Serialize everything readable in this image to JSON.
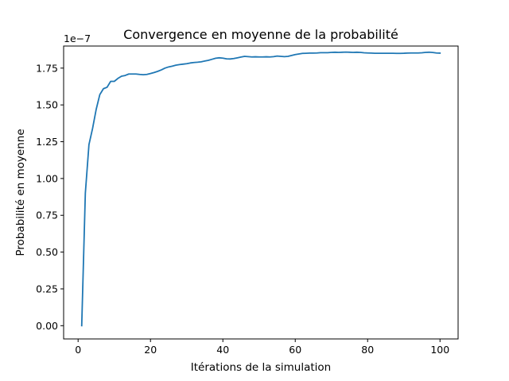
{
  "chart_data": {
    "type": "line",
    "title": "Convergence en moyenne de la probabilité",
    "xlabel": "Itérations de la simulation",
    "ylabel": "Probabilité en moyenne",
    "y_offset_label": "1e−7",
    "xlim": [
      -4,
      105
    ],
    "ylim": [
      -0.09,
      1.9
    ],
    "x_ticks": [
      0,
      20,
      40,
      60,
      80,
      100
    ],
    "x_tick_labels": [
      "0",
      "20",
      "40",
      "60",
      "80",
      "100"
    ],
    "y_ticks": [
      0,
      0.25,
      0.5,
      0.75,
      1.0,
      1.25,
      1.5,
      1.75
    ],
    "y_tick_labels": [
      "0.00",
      "0.25",
      "0.50",
      "0.75",
      "1.00",
      "1.25",
      "1.50",
      "1.75"
    ],
    "grid": false,
    "line_color": "#1f77b4",
    "series": [
      {
        "x": [
          1,
          2,
          3,
          4,
          5,
          6,
          7,
          8,
          9,
          10,
          11,
          12,
          13,
          14,
          15,
          16,
          17,
          18,
          19,
          20,
          21,
          22,
          23,
          24,
          25,
          26,
          27,
          28,
          29,
          30,
          31,
          32,
          33,
          34,
          35,
          36,
          37,
          38,
          39,
          40,
          41,
          42,
          43,
          44,
          45,
          46,
          47,
          48,
          49,
          50,
          51,
          52,
          53,
          54,
          55,
          56,
          57,
          58,
          59,
          60,
          61,
          62,
          63,
          64,
          65,
          66,
          67,
          68,
          69,
          70,
          71,
          72,
          73,
          74,
          75,
          76,
          77,
          78,
          79,
          80,
          81,
          82,
          83,
          84,
          85,
          86,
          87,
          88,
          89,
          90,
          91,
          92,
          93,
          94,
          95,
          96,
          97,
          98,
          99,
          100
        ],
        "values": [
          0.0,
          0.9,
          1.23,
          1.34,
          1.47,
          1.57,
          1.61,
          1.62,
          1.66,
          1.66,
          1.68,
          1.695,
          1.7,
          1.71,
          1.71,
          1.71,
          1.707,
          1.705,
          1.707,
          1.713,
          1.72,
          1.728,
          1.738,
          1.75,
          1.758,
          1.763,
          1.77,
          1.774,
          1.777,
          1.78,
          1.785,
          1.788,
          1.79,
          1.793,
          1.798,
          1.803,
          1.81,
          1.817,
          1.82,
          1.818,
          1.813,
          1.812,
          1.815,
          1.82,
          1.825,
          1.83,
          1.828,
          1.826,
          1.827,
          1.826,
          1.826,
          1.827,
          1.826,
          1.828,
          1.832,
          1.83,
          1.828,
          1.83,
          1.836,
          1.842,
          1.846,
          1.85,
          1.851,
          1.852,
          1.852,
          1.853,
          1.855,
          1.855,
          1.855,
          1.857,
          1.858,
          1.857,
          1.858,
          1.859,
          1.858,
          1.857,
          1.858,
          1.857,
          1.854,
          1.853,
          1.852,
          1.851,
          1.851,
          1.851,
          1.851,
          1.851,
          1.851,
          1.85,
          1.85,
          1.851,
          1.852,
          1.853,
          1.853,
          1.853,
          1.854,
          1.857,
          1.858,
          1.856,
          1.853,
          1.852
        ]
      }
    ]
  }
}
